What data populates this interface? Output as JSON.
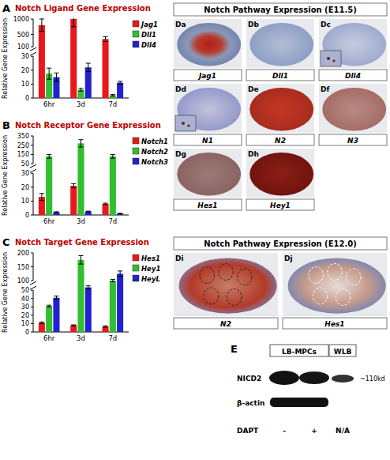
{
  "chart_data": [
    {
      "type": "bar",
      "panel_label": "A",
      "title": "Notch Ligand Gene Expression",
      "y_label": "Relative Gene Expression",
      "categories": [
        "6hr",
        "3d",
        "7d"
      ],
      "series": [
        {
          "name": "Jag1",
          "color": "#e8181c",
          "values": [
            800,
            1000,
            350
          ],
          "errors": [
            200,
            250,
            80
          ]
        },
        {
          "name": "Dll1",
          "color": "#2fbf2f",
          "values": [
            17.5,
            6,
            2
          ],
          "errors": [
            4,
            1,
            0.5
          ]
        },
        {
          "name": "Dll4",
          "color": "#2222cc",
          "values": [
            15,
            22,
            11
          ],
          "errors": [
            3,
            3,
            1
          ]
        }
      ],
      "ylim": [
        0,
        1000
      ],
      "yticks": [
        0,
        10,
        20,
        30,
        100,
        500,
        1000
      ],
      "grid": false,
      "legend": "right"
    },
    {
      "type": "bar",
      "panel_label": "B",
      "title": "Notch Receptor Gene Expression",
      "y_label": "Relative Gene Expression",
      "categories": [
        "6hr",
        "3d",
        "7d"
      ],
      "series": [
        {
          "name": "Notch1",
          "color": "#e8181c",
          "values": [
            13,
            21,
            8
          ],
          "errors": [
            2.5,
            1.5,
            0.5
          ]
        },
        {
          "name": "Notch2",
          "color": "#2fbf2f",
          "values": [
            130,
            270,
            130
          ],
          "errors": [
            20,
            40,
            20
          ]
        },
        {
          "name": "Notch3",
          "color": "#2222cc",
          "values": [
            2,
            2.5,
            1
          ],
          "errors": [
            0.3,
            0.3,
            0.2
          ]
        }
      ],
      "ylim": [
        0,
        350
      ],
      "yticks": [
        0,
        10,
        20,
        30,
        50,
        150,
        250,
        350
      ],
      "grid": false,
      "legend": "right"
    },
    {
      "type": "bar",
      "panel_label": "C",
      "title": "Notch Target Gene Expression",
      "y_label": "Relative Gene Expression",
      "categories": [
        "6hr",
        "3d",
        "7d"
      ],
      "series": [
        {
          "name": "Hes1",
          "color": "#e8181c",
          "values": [
            11,
            8,
            6.5
          ],
          "errors": [
            1,
            0.5,
            0.8
          ]
        },
        {
          "name": "Hey1",
          "color": "#2fbf2f",
          "values": [
            31,
            175,
            100
          ],
          "errors": [
            1,
            15,
            5
          ]
        },
        {
          "name": "HeyL",
          "color": "#2222cc",
          "values": [
            41,
            65,
            125
          ],
          "errors": [
            2,
            8,
            10
          ]
        }
      ],
      "ylim": [
        0,
        200
      ],
      "yticks": [
        0,
        10,
        20,
        30,
        40,
        50,
        100,
        150,
        200
      ],
      "grid": false,
      "legend": "right"
    }
  ],
  "histology": {
    "groups": [
      {
        "title": "Notch Pathway Expression (E11.5)",
        "panels": [
          {
            "letter": "Da",
            "label": "Jag1"
          },
          {
            "letter": "Db",
            "label": "Dll1"
          },
          {
            "letter": "Dc",
            "label": "Dll4"
          },
          {
            "letter": "Dd",
            "label": "N1"
          },
          {
            "letter": "De",
            "label": "N2"
          },
          {
            "letter": "Df",
            "label": "N3"
          },
          {
            "letter": "Dg",
            "label": "Hes1"
          },
          {
            "letter": "Dh",
            "label": "Hey1"
          }
        ]
      },
      {
        "title": "Notch Pathway Expression (E12.0)",
        "panels": [
          {
            "letter": "Di",
            "label": "N2"
          },
          {
            "letter": "Dj",
            "label": "Hes1"
          }
        ]
      }
    ]
  },
  "western_blot": {
    "letter": "E",
    "groups": [
      "LB-MPCs",
      "WLB"
    ],
    "rows": [
      "NICD2",
      "β-actin"
    ],
    "size": "~110kd",
    "treatment": {
      "label": "DAPT",
      "lanes": [
        "-",
        "+",
        "N/A"
      ]
    }
  }
}
